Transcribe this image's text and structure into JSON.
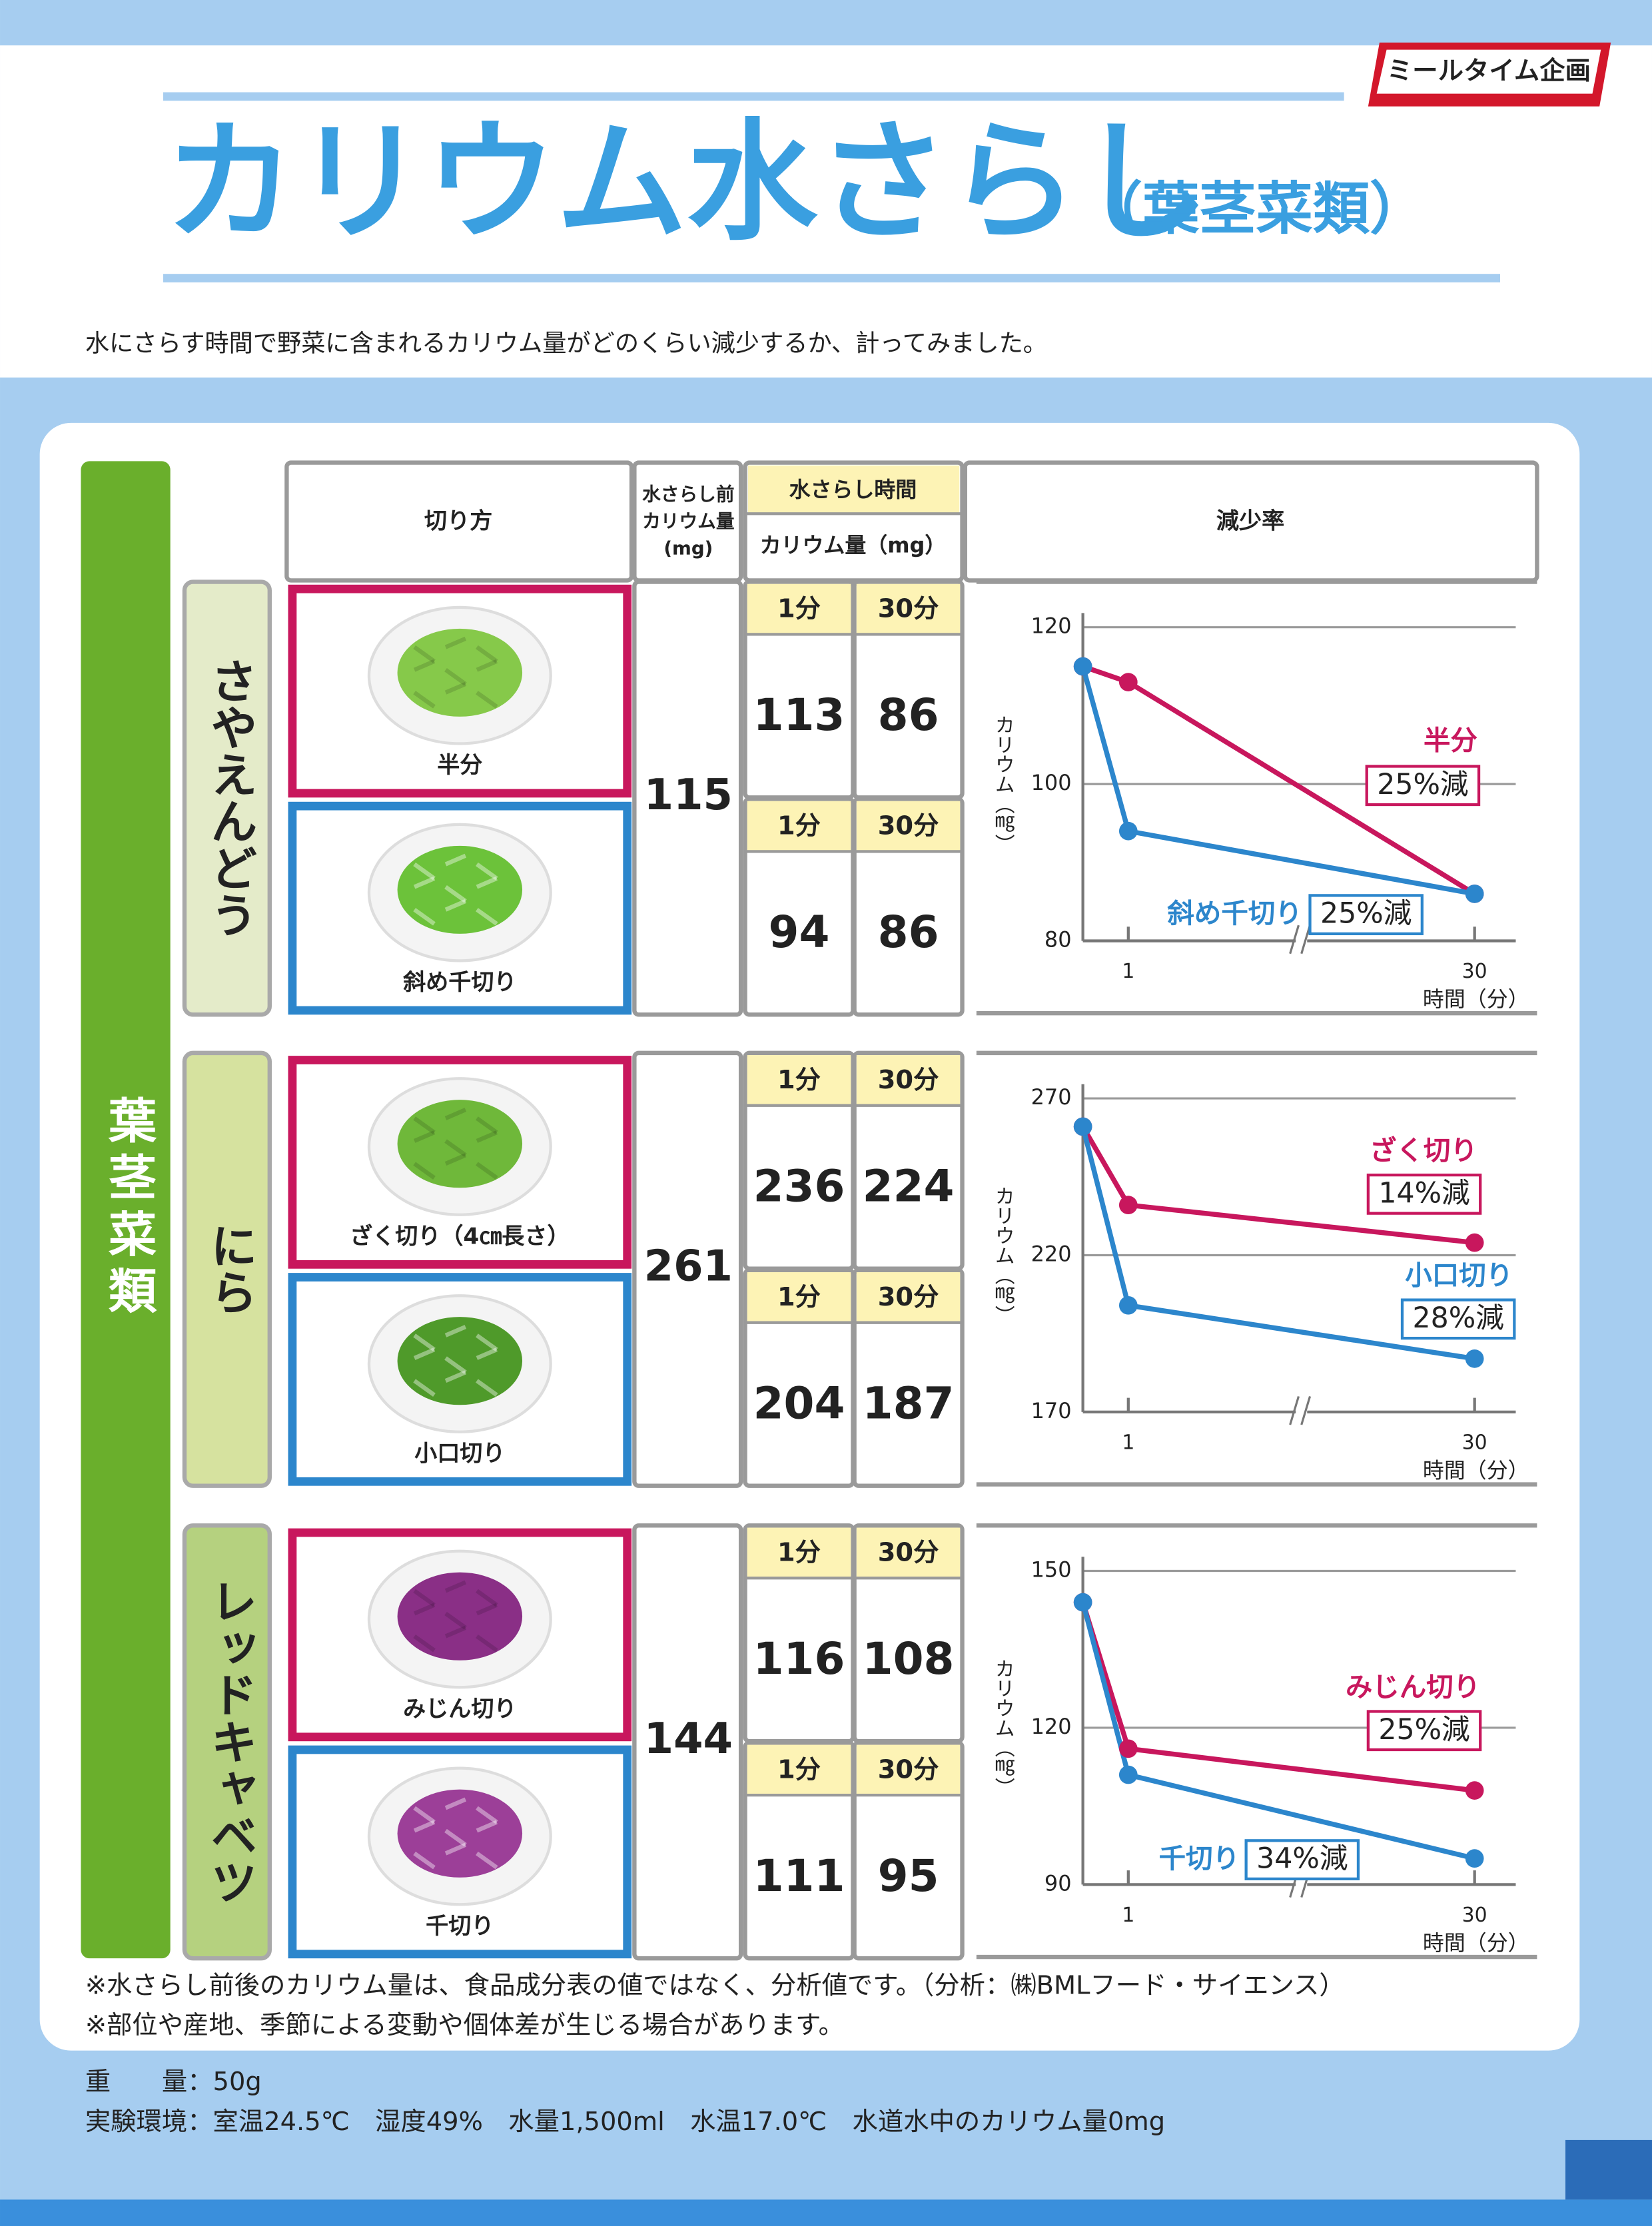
{
  "header": {
    "logo": "ミールタイム企画",
    "title": "カリウム水さらし",
    "subtitle": "（葉茎菜類）",
    "intro": "水にさらす時間で野菜に含まれるカリウム量がどのくらい減少するか、計ってみました。"
  },
  "table": {
    "group": "葉茎菜類",
    "cut": "切り方",
    "before": [
      "水さらし前",
      "カリウム量",
      "(mg)"
    ],
    "time": "水さらし時間",
    "amount": "カリウム量（mg）",
    "rate": "減少率",
    "time_labels": [
      "1分",
      "30分"
    ],
    "rows": [
      {
        "name": "さやえんどう",
        "cuts": [
          "半分",
          "斜め千切り"
        ]
      },
      {
        "name": "にら",
        "cuts": [
          "ざく切り（4㎝長さ）",
          "小口切り"
        ]
      },
      {
        "name": "レッドキャベツ",
        "cuts": [
          "みじん切り",
          "千切り"
        ]
      }
    ]
  },
  "chart_data": [
    {
      "type": "line",
      "x": [
        0,
        1,
        30
      ],
      "xlim": [
        0,
        30
      ],
      "xticks": [
        1,
        30
      ],
      "x_label": "時間（分）",
      "y_label": "カリウム（㎎）",
      "ylim": [
        80,
        120
      ],
      "yticks": [
        80,
        100,
        120
      ],
      "grid": true,
      "series": [
        {
          "name": "半分",
          "color": "#c8175d",
          "values": [
            115,
            113,
            86
          ],
          "annotation": "25%減"
        },
        {
          "name": "斜め千切り",
          "color": "#2c86cc",
          "values": [
            115,
            94,
            86
          ],
          "annotation": "25%減"
        }
      ]
    },
    {
      "type": "line",
      "x": [
        0,
        1,
        30
      ],
      "xlim": [
        0,
        30
      ],
      "xticks": [
        1,
        30
      ],
      "x_label": "時間（分）",
      "y_label": "カリウム（㎎）",
      "ylim": [
        170,
        270
      ],
      "yticks": [
        170,
        220,
        270
      ],
      "grid": true,
      "series": [
        {
          "name": "ざく切り",
          "color": "#c8175d",
          "values": [
            261,
            236,
            224
          ],
          "annotation": "14%減"
        },
        {
          "name": "小口切り",
          "color": "#2c86cc",
          "values": [
            261,
            204,
            187
          ],
          "annotation": "28%減"
        }
      ]
    },
    {
      "type": "line",
      "x": [
        0,
        1,
        30
      ],
      "xlim": [
        0,
        30
      ],
      "xticks": [
        1,
        30
      ],
      "x_label": "時間（分）",
      "y_label": "カリウム（㎎）",
      "ylim": [
        90,
        150
      ],
      "yticks": [
        90,
        120,
        150
      ],
      "grid": true,
      "series": [
        {
          "name": "みじん切り",
          "color": "#c8175d",
          "values": [
            144,
            116,
            108
          ],
          "annotation": "25%減"
        },
        {
          "name": "千切り",
          "color": "#2c86cc",
          "values": [
            144,
            111,
            95
          ],
          "annotation": "34%減"
        }
      ]
    }
  ],
  "notes": [
    "※水さらし前後のカリウム量は、食品成分表の値ではなく、分析値です。（分析：㈱BMLフード・サイエンス）",
    "※部位や産地、季節による変動や個体差が生じる場合があります。"
  ],
  "footer": [
    "重　　量：50g",
    "実験環境：室温24.5℃　湿度49%　水量1,500ml　水温17.0℃　水道水中のカリウム量0mg"
  ]
}
